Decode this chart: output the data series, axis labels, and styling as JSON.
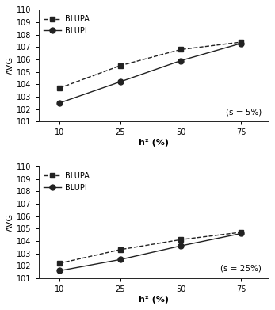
{
  "x_values": [
    10,
    25,
    50,
    75
  ],
  "x_positions": [
    0,
    1,
    2,
    3
  ],
  "top": {
    "blupa": [
      103.7,
      105.5,
      106.8,
      107.4
    ],
    "blupi": [
      102.5,
      104.2,
      105.9,
      107.3
    ],
    "annotation": "(s = 5%)"
  },
  "bottom": {
    "blupa": [
      102.2,
      103.3,
      104.1,
      104.7
    ],
    "blupi": [
      101.6,
      102.5,
      103.6,
      104.6
    ],
    "annotation": "(s = 25%)"
  },
  "ylim": [
    101,
    110
  ],
  "yticks": [
    101,
    102,
    103,
    104,
    105,
    106,
    107,
    108,
    109,
    110
  ],
  "xlabel": "h² (%)",
  "ylabel": "AVG",
  "blupa_label": "BLUPA",
  "blupi_label": "BLUPI",
  "line_color": "#222222",
  "bg_color": "#ffffff",
  "marker_size": 5,
  "linewidth": 1.0,
  "tick_fontsize": 7,
  "label_fontsize": 8,
  "legend_fontsize": 7,
  "annotation_fontsize": 7.5
}
